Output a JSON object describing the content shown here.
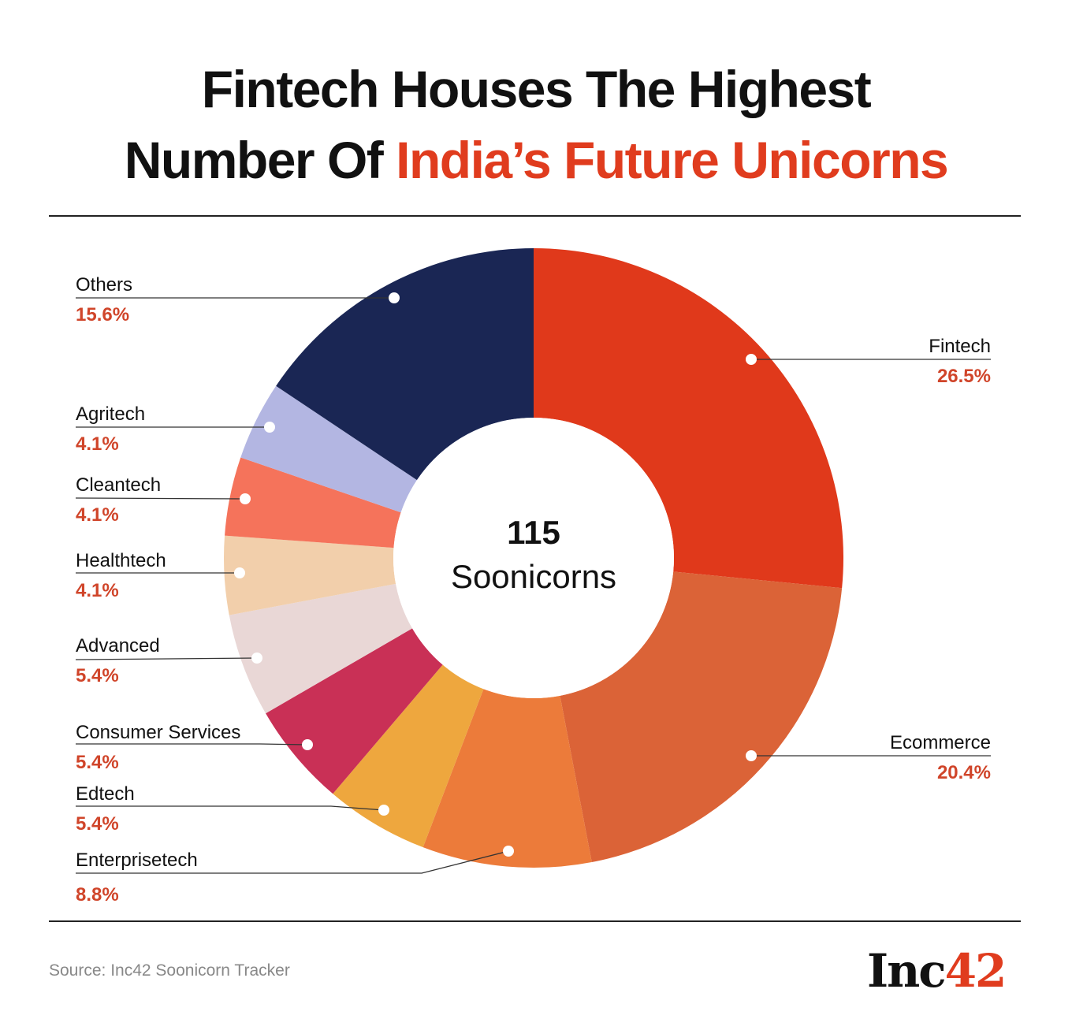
{
  "title": {
    "line1": "Fintech Houses The Highest",
    "line2_plain": "Number Of ",
    "line2_highlight": "India’s Future Unicorns"
  },
  "chart_data": {
    "type": "pie",
    "donut": true,
    "title": "Fintech Houses The Highest Number Of India’s Future Unicorns",
    "center_value": "115",
    "center_label": "Soonicorns",
    "unit": "%",
    "slices": [
      {
        "label": "Fintech",
        "value": 26.5,
        "display": "26.5%",
        "color": "#e0391b"
      },
      {
        "label": "Ecommerce",
        "value": 20.4,
        "display": "20.4%",
        "color": "#db6337"
      },
      {
        "label": "Enterprisetech",
        "value": 8.8,
        "display": "8.8%",
        "color": "#ec7b3a"
      },
      {
        "label": "Edtech",
        "value": 5.4,
        "display": "5.4%",
        "color": "#eea73e"
      },
      {
        "label": "Consumer Services",
        "value": 5.4,
        "display": "5.4%",
        "color": "#c93056"
      },
      {
        "label": "Advanced",
        "value": 5.4,
        "display": "5.4%",
        "color": "#e9d7d6"
      },
      {
        "label": "Healthtech",
        "value": 4.1,
        "display": "4.1%",
        "color": "#f2cfab"
      },
      {
        "label": "Cleantech",
        "value": 4.1,
        "display": "4.1%",
        "color": "#f5735b"
      },
      {
        "label": "Agritech",
        "value": 4.1,
        "display": "4.1%",
        "color": "#b3b6e2"
      },
      {
        "label": "Others",
        "value": 15.6,
        "display": "15.6%",
        "color": "#1a2654"
      }
    ]
  },
  "source": "Source: Inc42 Soonicorn Tracker",
  "logo": {
    "text": "Inc",
    "accent": "42"
  }
}
